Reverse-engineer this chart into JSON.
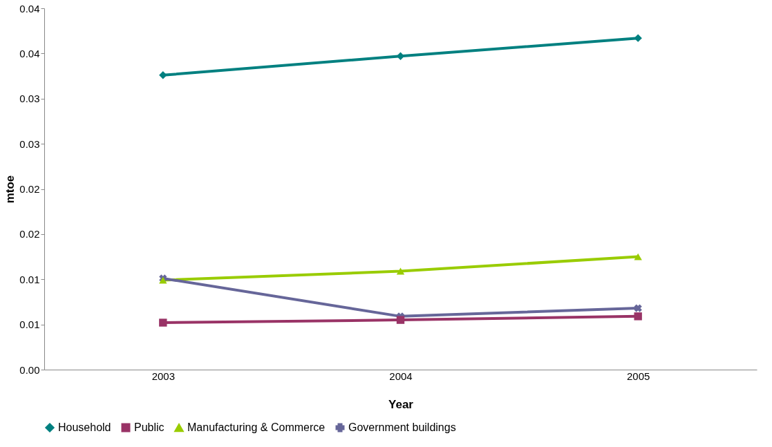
{
  "chart_data": {
    "type": "line",
    "xlabel": "Year",
    "ylabel": "mtoe",
    "categories": [
      "2003",
      "2004",
      "2005"
    ],
    "series": [
      {
        "name": "Household",
        "color": "#008080",
        "marker": "diamond",
        "values": [
          0.0326,
          0.0347,
          0.0367
        ]
      },
      {
        "name": "Public",
        "color": "#993366",
        "marker": "square",
        "values": [
          0.0052,
          0.0055,
          0.0059
        ]
      },
      {
        "name": "Manufacturing & Commerce",
        "color": "#99cc00",
        "marker": "triangle",
        "values": [
          0.0099,
          0.0109,
          0.0125
        ]
      },
      {
        "name": "Government buildings",
        "color": "#666699",
        "marker": "cross",
        "values": [
          0.0101,
          0.0059,
          0.0068
        ]
      }
    ],
    "ylim": [
      0,
      0.04
    ],
    "yticks": [
      {
        "value": 0,
        "label": "0.00"
      },
      {
        "value": 0.005,
        "label": "0.01"
      },
      {
        "value": 0.01,
        "label": "0.01"
      },
      {
        "value": 0.015,
        "label": "0.02"
      },
      {
        "value": 0.02,
        "label": "0.02"
      },
      {
        "value": 0.025,
        "label": "0.03"
      },
      {
        "value": 0.03,
        "label": "0.03"
      },
      {
        "value": 0.035,
        "label": "0.04"
      },
      {
        "value": 0.04,
        "label": "0.04"
      }
    ],
    "grid": false,
    "legend": "bottom",
    "line_style": "solid"
  }
}
